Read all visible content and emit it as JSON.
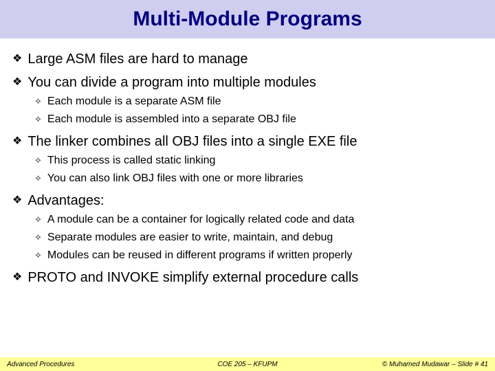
{
  "title": "Multi-Module Programs",
  "title_color": "#000080",
  "title_bg": "#d0cef0",
  "title_font_family": "Comic Sans MS",
  "title_fontsize": 30,
  "main_bullet_glyph": "❖",
  "sub_bullet_glyph": "✧",
  "main_fontsize": 20,
  "sub_fontsize": 16,
  "bullets": [
    {
      "text": "Large ASM files are hard to manage",
      "subs": []
    },
    {
      "text": "You can divide a program into multiple modules",
      "subs": [
        "Each module is a separate ASM file",
        "Each module is assembled into a separate OBJ file"
      ]
    },
    {
      "text": "The linker combines all OBJ files into a single EXE file",
      "subs": [
        "This process is called static linking",
        "You can also link OBJ files with one or more libraries"
      ]
    },
    {
      "text": "Advantages:",
      "subs": [
        "A module can be a container for logically related code and data",
        "Separate modules are easier to write, maintain, and debug",
        "Modules can be reused in different programs if written properly"
      ]
    },
    {
      "text": "PROTO and INVOKE simplify external procedure calls",
      "subs": []
    }
  ],
  "footer": {
    "left": "Advanced Procedures",
    "mid": "COE 205 – KFUPM",
    "right": "© Muhamed Mudawar – Slide # 41",
    "bg": "#ffff99",
    "fontsize": 10
  }
}
